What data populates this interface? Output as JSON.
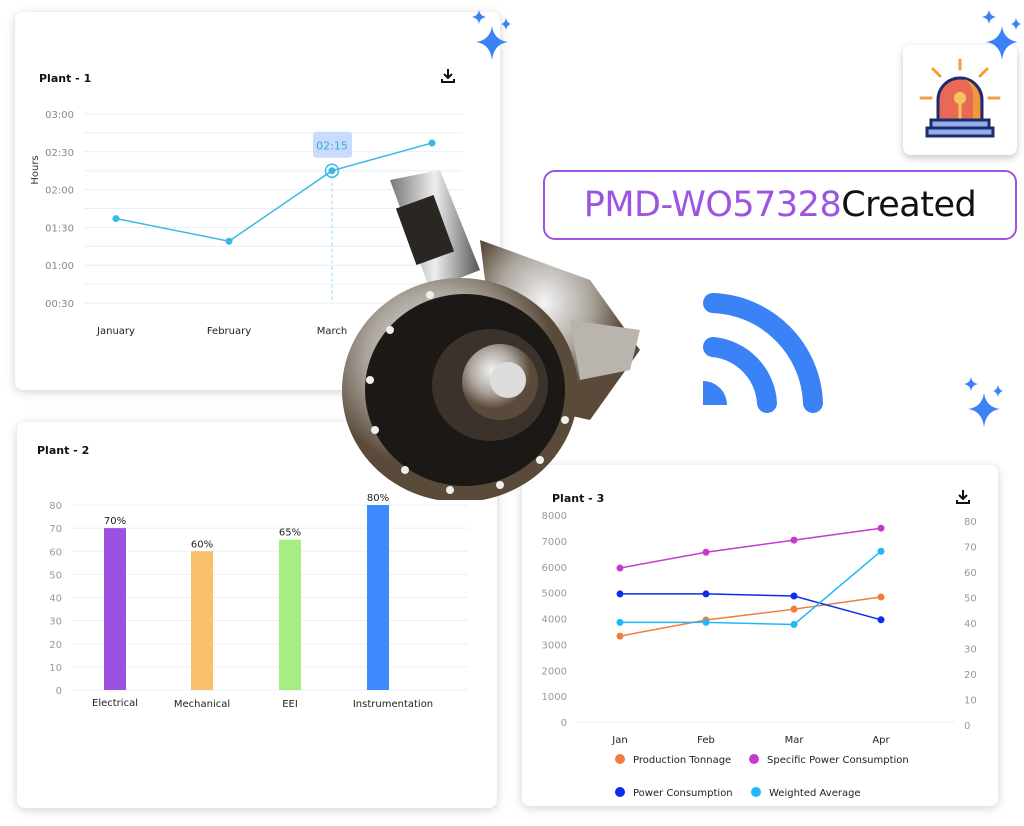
{
  "notification": {
    "id": "PMD-WO57328",
    "status": "Created",
    "icon": "alarm-siren-icon"
  },
  "decor": {
    "wifi_icon": "wifi-signal-icon",
    "sparkle_icon": "sparkle-icon",
    "machine_image": "wheel-hub-photo",
    "accent": "#3b82f6"
  },
  "chart_data": [
    {
      "type": "line",
      "title": "Plant - 1",
      "ylabel": "Hours",
      "xlabel": "",
      "categories": [
        "January",
        "February",
        "March",
        ""
      ],
      "values": [
        "01:37",
        "01:19",
        "02:15",
        "02:37"
      ],
      "yticks": [
        "00:30",
        "01:00",
        "01:30",
        "02:00",
        "02:30",
        "03:00"
      ],
      "ylim": [
        "00:30",
        "03:00"
      ],
      "tooltip": {
        "category": "March",
        "value": "02:15"
      },
      "grid": true,
      "color": "#3bb8e6",
      "download_icon": "download-icon"
    },
    {
      "type": "bar",
      "title": "Plant - 2",
      "categories": [
        "Electrical",
        "Mechanical",
        "EEI",
        "Instrumentation"
      ],
      "values": [
        70,
        60,
        65,
        80
      ],
      "data_labels": [
        "70%",
        "60%",
        "65%",
        "80%"
      ],
      "colors": [
        "#9b51e0",
        "#f9c06b",
        "#a6ee84",
        "#3d8bfd"
      ],
      "yticks": [
        "0",
        "10",
        "20",
        "30",
        "40",
        "50",
        "60",
        "70",
        "80"
      ],
      "ylim": [
        0,
        80
      ],
      "grid": true
    },
    {
      "type": "line",
      "title": "Plant - 3",
      "categories": [
        "Jan",
        "Feb",
        "Mar",
        "Apr"
      ],
      "ylim": [
        0,
        8000
      ],
      "y2lim": [
        0,
        80
      ],
      "yticks": [
        "0",
        "1000",
        "2000",
        "3000",
        "4000",
        "5000",
        "6000",
        "7000",
        "8000"
      ],
      "y2ticks": [
        "0",
        "10",
        "20",
        "30",
        "40",
        "50",
        "60",
        "70",
        "80"
      ],
      "legend_position": "bottom",
      "series": [
        {
          "name": "Production Tonnage",
          "color": "#f07c3e",
          "values": [
            3320,
            3940,
            4360,
            4830
          ]
        },
        {
          "name": "Specific Power Consumption",
          "color": "#c43ad1",
          "values": [
            5950,
            6560,
            7030,
            7490
          ]
        },
        {
          "name": "Power Consumption",
          "color": "#0b2ee8",
          "values": [
            4950,
            4950,
            4870,
            3950
          ]
        },
        {
          "name": "Weighted Average",
          "color": "#21b8f7",
          "values": [
            3850,
            3850,
            3770,
            6600
          ]
        }
      ],
      "download_icon": "download-icon"
    }
  ]
}
